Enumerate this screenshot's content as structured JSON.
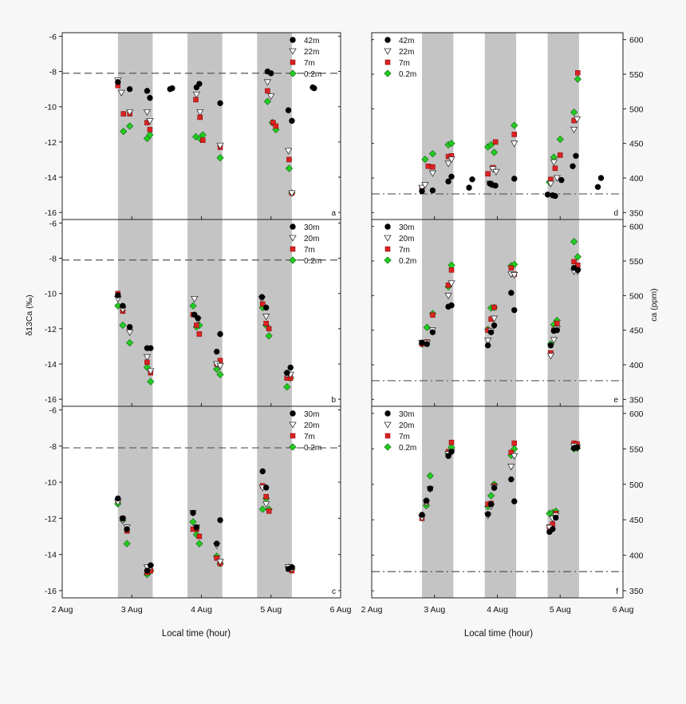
{
  "figure": {
    "x_axis_title": "Local time (hour)",
    "left_y_axis_title": "δ13Ca (‰)",
    "right_y_axis_title": "ca (ppm)",
    "x_tick_labels": [
      "2 Aug",
      "3 Aug",
      "4 Aug",
      "5 Aug",
      "6 Aug"
    ]
  },
  "chart_data": [
    {
      "panel": "a",
      "type": "scatter",
      "yaxis_side": "left",
      "ylim": [
        -16.4,
        -5.8
      ],
      "yticks": [
        -6,
        -8,
        -10,
        -12,
        -14,
        -16
      ],
      "xlim": [
        2,
        6
      ],
      "reference_line": {
        "y": -8.1,
        "style": "dashed"
      },
      "shaded_x": [
        [
          2.8,
          3.3
        ],
        [
          3.8,
          4.3
        ],
        [
          4.8,
          5.3
        ]
      ],
      "series": [
        {
          "name": "42m",
          "marker": "circle",
          "color": "#000000",
          "x": [
            2.8,
            2.97,
            3.22,
            3.26,
            3.55,
            3.58,
            3.93,
            3.97,
            4.27,
            4.95,
            5.0,
            5.25,
            5.3,
            5.6,
            5.62
          ],
          "y": [
            -8.6,
            -9.0,
            -9.1,
            -9.5,
            -9.0,
            -8.95,
            -8.9,
            -8.7,
            -9.8,
            -8.0,
            -8.1,
            -10.2,
            -10.8,
            -8.9,
            -8.95
          ]
        },
        {
          "name": "22m",
          "marker": "triangle-down",
          "color": "#ffffff",
          "x": [
            2.8,
            2.85,
            2.97,
            3.22,
            3.26,
            3.93,
            3.98,
            4.27,
            4.95,
            5.0,
            5.25,
            5.3
          ],
          "y": [
            -8.5,
            -9.2,
            -10.3,
            -10.3,
            -10.8,
            -9.3,
            -10.3,
            -12.2,
            -8.6,
            -9.4,
            -12.5,
            -14.9
          ]
        },
        {
          "name": "7m",
          "marker": "square",
          "color": "#dd2222",
          "x": [
            2.8,
            2.88,
            2.97,
            3.22,
            3.26,
            3.92,
            3.98,
            4.02,
            4.27,
            4.95,
            5.03,
            5.07,
            5.26,
            5.3
          ],
          "y": [
            -8.8,
            -10.4,
            -10.4,
            -10.9,
            -11.3,
            -9.6,
            -10.6,
            -11.9,
            -12.3,
            -9.1,
            -10.9,
            -11.1,
            -13.0,
            -14.9
          ]
        },
        {
          "name": "0.2m",
          "marker": "diamond",
          "color": "#22cc22",
          "x": [
            2.88,
            2.97,
            3.22,
            3.26,
            3.92,
            3.98,
            4.02,
            4.27,
            4.95,
            5.02,
            5.07,
            5.26,
            5.3
          ],
          "y": [
            -11.4,
            -11.1,
            -11.8,
            -11.6,
            -11.7,
            -11.8,
            -11.6,
            -12.9,
            -9.7,
            -10.9,
            -11.3,
            -13.5,
            -14.9
          ]
        }
      ]
    },
    {
      "panel": "b",
      "type": "scatter",
      "yaxis_side": "left",
      "ylim": [
        -16.4,
        -5.8
      ],
      "yticks": [
        -6,
        -8,
        -10,
        -12,
        -14,
        -16
      ],
      "xlim": [
        2,
        6
      ],
      "reference_line": {
        "y": -8.1,
        "style": "dashed"
      },
      "shaded_x": [
        [
          2.8,
          3.3
        ],
        [
          3.8,
          4.3
        ],
        [
          4.8,
          5.3
        ]
      ],
      "series": [
        {
          "name": "30m",
          "marker": "circle",
          "color": "#000000",
          "x": [
            2.8,
            2.87,
            2.97,
            3.22,
            3.27,
            3.9,
            3.95,
            4.22,
            4.27,
            4.87,
            4.93,
            5.23,
            5.28
          ],
          "y": [
            -10.1,
            -10.7,
            -11.9,
            -13.1,
            -13.1,
            -11.2,
            -11.4,
            -13.3,
            -12.3,
            -10.2,
            -10.8,
            -14.5,
            -14.2
          ]
        },
        {
          "name": "20m",
          "marker": "triangle-down",
          "color": "#ffffff",
          "x": [
            2.8,
            2.87,
            2.97,
            3.22,
            3.27,
            3.9,
            3.95,
            4.22,
            4.27,
            4.87,
            4.93,
            5.23,
            5.28
          ],
          "y": [
            -10.3,
            -10.9,
            -12.2,
            -13.6,
            -14.4,
            -10.3,
            -11.5,
            -14.0,
            -14.1,
            -10.3,
            -11.3,
            -14.6,
            -14.6
          ]
        },
        {
          "name": "7m",
          "marker": "square",
          "color": "#dd2222",
          "x": [
            2.8,
            2.87,
            2.97,
            3.22,
            3.27,
            3.88,
            3.93,
            3.97,
            4.22,
            4.27,
            4.88,
            4.93,
            4.97,
            5.23,
            5.28
          ],
          "y": [
            -10.0,
            -11.0,
            -12.0,
            -13.9,
            -14.5,
            -11.2,
            -11.8,
            -12.3,
            -14.0,
            -13.8,
            -10.6,
            -11.7,
            -12.0,
            -14.8,
            -14.8
          ]
        },
        {
          "name": "0.2m",
          "marker": "diamond",
          "color": "#22cc22",
          "x": [
            2.8,
            2.87,
            2.97,
            3.22,
            3.27,
            3.88,
            3.93,
            3.97,
            4.22,
            4.27,
            4.88,
            4.93,
            4.97,
            5.23,
            5.28
          ],
          "y": [
            -10.7,
            -11.8,
            -12.8,
            -14.2,
            -15.0,
            -10.7,
            -11.9,
            -11.8,
            -14.3,
            -14.6,
            -10.8,
            -11.8,
            -12.4,
            -15.3,
            -14.8
          ]
        }
      ]
    },
    {
      "panel": "c",
      "type": "scatter",
      "yaxis_side": "left",
      "ylim": [
        -16.4,
        -5.8
      ],
      "yticks": [
        -6,
        -8,
        -10,
        -12,
        -14,
        -16
      ],
      "xlim": [
        2,
        6
      ],
      "reference_line": {
        "y": -8.1,
        "style": "dashed"
      },
      "shaded_x": [
        [
          2.8,
          3.3
        ],
        [
          3.8,
          4.3
        ],
        [
          4.8,
          5.3
        ]
      ],
      "series": [
        {
          "name": "30m",
          "marker": "circle",
          "color": "#000000",
          "x": [
            2.8,
            2.87,
            2.93,
            3.22,
            3.27,
            3.88,
            3.93,
            4.22,
            4.27,
            4.88,
            4.93,
            5.25,
            5.3
          ],
          "y": [
            -10.9,
            -12.0,
            -12.6,
            -14.9,
            -14.6,
            -11.7,
            -12.5,
            -13.4,
            -12.1,
            -9.4,
            -10.3,
            -14.8,
            -14.7
          ]
        },
        {
          "name": "20m",
          "marker": "triangle-down",
          "color": "#ffffff",
          "x": [
            2.8,
            2.87,
            2.93,
            3.22,
            3.27,
            3.88,
            3.93,
            4.22,
            4.27,
            4.88,
            4.93,
            5.25,
            5.3
          ],
          "y": [
            -11.1,
            -12.1,
            -12.5,
            -14.7,
            -14.7,
            -11.7,
            -12.5,
            -13.5,
            -14.4,
            -10.3,
            -11.2,
            -14.7,
            -14.8
          ]
        },
        {
          "name": "7m",
          "marker": "square",
          "color": "#dd2222",
          "x": [
            2.8,
            2.87,
            2.93,
            3.22,
            3.27,
            3.88,
            3.93,
            3.97,
            4.22,
            4.27,
            4.88,
            4.93,
            4.97,
            5.25,
            5.3
          ],
          "y": [
            -11.0,
            -12.0,
            -12.7,
            -15.0,
            -14.9,
            -12.6,
            -12.6,
            -13.0,
            -14.2,
            -14.5,
            -10.2,
            -10.8,
            -11.6,
            -14.8,
            -14.9
          ]
        },
        {
          "name": "0.2m",
          "marker": "diamond",
          "color": "#22cc22",
          "x": [
            2.8,
            2.87,
            2.93,
            3.22,
            3.27,
            3.88,
            3.93,
            3.97,
            4.22,
            4.27,
            4.88,
            4.93,
            4.97,
            5.25,
            5.3
          ],
          "y": [
            -11.2,
            -12.1,
            -13.4,
            -15.1,
            -14.9,
            -12.2,
            -12.9,
            -13.4,
            -14.1,
            -14.5,
            -11.5,
            -10.9,
            -11.5,
            -14.7,
            -14.8
          ]
        }
      ]
    },
    {
      "panel": "d",
      "type": "scatter",
      "yaxis_side": "right",
      "ylim": [
        340,
        610
      ],
      "yticks": [
        350,
        400,
        450,
        500,
        550,
        600
      ],
      "xlim": [
        2,
        6
      ],
      "reference_line": {
        "y": 377,
        "style": "dash-dot"
      },
      "shaded_x": [
        [
          2.8,
          3.3
        ],
        [
          3.8,
          4.3
        ],
        [
          4.8,
          5.3
        ]
      ],
      "series": [
        {
          "name": "42m",
          "marker": "circle",
          "color": "#000000",
          "x": [
            2.8,
            2.97,
            3.22,
            3.27,
            3.55,
            3.6,
            3.88,
            3.92,
            3.97,
            4.27,
            4.8,
            4.88,
            4.92,
            5.02,
            5.2,
            5.25,
            5.6,
            5.65
          ],
          "y": [
            381,
            382,
            395,
            402,
            386,
            398,
            392,
            390,
            389,
            399,
            376,
            375,
            374,
            397,
            417,
            432,
            387,
            400
          ]
        },
        {
          "name": "22m",
          "marker": "triangle-down",
          "color": "#ffffff",
          "x": [
            2.8,
            2.85,
            2.97,
            3.22,
            3.27,
            3.88,
            3.93,
            3.98,
            4.27,
            4.85,
            4.9,
            4.95,
            5.22,
            5.27
          ],
          "y": [
            386,
            390,
            407,
            421,
            427,
            392,
            413,
            409,
            450,
            392,
            423,
            400,
            470,
            485
          ]
        },
        {
          "name": "7m",
          "marker": "square",
          "color": "#dd2222",
          "x": [
            2.8,
            2.9,
            2.97,
            3.22,
            3.27,
            3.85,
            3.93,
            3.97,
            4.27,
            4.85,
            4.92,
            5.0,
            5.22,
            5.28
          ],
          "y": [
            386,
            417,
            416,
            431,
            432,
            406,
            415,
            452,
            463,
            398,
            414,
            433,
            483,
            552
          ]
        },
        {
          "name": "0.2m",
          "marker": "diamond",
          "color": "#22cc22",
          "x": [
            2.85,
            2.97,
            3.22,
            3.27,
            3.85,
            3.9,
            3.95,
            4.27,
            4.83,
            4.9,
            5.0,
            5.22,
            5.28
          ],
          "y": [
            427,
            435,
            448,
            450,
            445,
            448,
            437,
            476,
            394,
            430,
            456,
            495,
            543
          ]
        }
      ]
    },
    {
      "panel": "e",
      "type": "scatter",
      "yaxis_side": "right",
      "ylim": [
        340,
        610
      ],
      "yticks": [
        350,
        400,
        450,
        500,
        550,
        600
      ],
      "xlim": [
        2,
        6
      ],
      "reference_line": {
        "y": 377,
        "style": "dash-dot"
      },
      "shaded_x": [
        [
          2.8,
          3.3
        ],
        [
          3.8,
          4.3
        ],
        [
          4.8,
          5.3
        ]
      ],
      "series": [
        {
          "name": "30m",
          "marker": "circle",
          "color": "#000000",
          "x": [
            2.8,
            2.88,
            2.97,
            3.22,
            3.27,
            3.85,
            3.9,
            3.95,
            4.22,
            4.27,
            4.85,
            4.9,
            4.95,
            5.22,
            5.28
          ],
          "y": [
            432,
            430,
            447,
            484,
            486,
            428,
            447,
            457,
            504,
            479,
            428,
            449,
            450,
            540,
            537
          ]
        },
        {
          "name": "20m",
          "marker": "triangle-down",
          "color": "#ffffff",
          "x": [
            2.8,
            2.88,
            2.97,
            3.22,
            3.27,
            3.85,
            3.9,
            3.95,
            4.22,
            4.27,
            4.85,
            4.9,
            4.95,
            5.22,
            5.28
          ],
          "y": [
            432,
            432,
            450,
            500,
            518,
            435,
            449,
            467,
            531,
            530,
            413,
            436,
            452,
            535,
            535
          ]
        },
        {
          "name": "7m",
          "marker": "square",
          "color": "#dd2222",
          "x": [
            2.8,
            2.88,
            2.97,
            3.22,
            3.27,
            3.85,
            3.9,
            3.95,
            4.22,
            4.27,
            4.85,
            4.9,
            4.95,
            5.22,
            5.28
          ],
          "y": [
            430,
            433,
            472,
            515,
            537,
            450,
            466,
            483,
            540,
            531,
            417,
            450,
            460,
            549,
            544
          ]
        },
        {
          "name": "0.2m",
          "marker": "diamond",
          "color": "#22cc22",
          "x": [
            2.8,
            2.88,
            2.97,
            3.22,
            3.27,
            3.85,
            3.9,
            3.95,
            4.22,
            4.27,
            4.85,
            4.9,
            4.95,
            5.22,
            5.28
          ],
          "y": [
            430,
            454,
            474,
            513,
            544,
            451,
            482,
            483,
            543,
            545,
            430,
            458,
            464,
            578,
            556
          ]
        }
      ]
    },
    {
      "panel": "f",
      "type": "scatter",
      "yaxis_side": "right",
      "ylim": [
        340,
        610
      ],
      "yticks": [
        350,
        400,
        450,
        500,
        550,
        600
      ],
      "xlim": [
        2,
        6
      ],
      "reference_line": {
        "y": 377,
        "style": "dash-dot"
      },
      "shaded_x": [
        [
          2.8,
          3.3
        ],
        [
          3.8,
          4.3
        ],
        [
          4.8,
          5.3
        ]
      ],
      "series": [
        {
          "name": "30m",
          "marker": "circle",
          "color": "#000000",
          "x": [
            2.8,
            2.87,
            2.93,
            3.22,
            3.27,
            3.85,
            3.9,
            3.95,
            4.22,
            4.27,
            4.83,
            4.88,
            4.93,
            5.22,
            5.27
          ],
          "y": [
            457,
            477,
            494,
            540,
            546,
            458,
            472,
            495,
            507,
            476,
            433,
            437,
            453,
            551,
            552
          ]
        },
        {
          "name": "20m",
          "marker": "triangle-down",
          "color": "#ffffff",
          "x": [
            2.8,
            2.87,
            2.93,
            3.22,
            3.27,
            3.85,
            3.9,
            3.95,
            4.22,
            4.27,
            4.83,
            4.88,
            4.93,
            5.22,
            5.27
          ],
          "y": [
            453,
            474,
            493,
            543,
            546,
            456,
            469,
            496,
            525,
            540,
            439,
            452,
            456,
            554,
            552
          ]
        },
        {
          "name": "7m",
          "marker": "square",
          "color": "#dd2222",
          "x": [
            2.8,
            2.87,
            2.93,
            3.22,
            3.27,
            3.85,
            3.9,
            3.95,
            4.22,
            4.27,
            4.83,
            4.88,
            4.93,
            5.22,
            5.27
          ],
          "y": [
            452,
            475,
            494,
            546,
            559,
            472,
            473,
            498,
            545,
            558,
            440,
            444,
            459,
            558,
            557
          ]
        },
        {
          "name": "0.2m",
          "marker": "diamond",
          "color": "#22cc22",
          "x": [
            2.8,
            2.87,
            2.93,
            3.22,
            3.27,
            3.85,
            3.9,
            3.95,
            4.22,
            4.27,
            4.83,
            4.88,
            4.93,
            5.22,
            5.27
          ],
          "y": [
            456,
            470,
            512,
            543,
            552,
            469,
            484,
            500,
            541,
            550,
            459,
            460,
            462,
            550,
            551
          ]
        }
      ]
    }
  ]
}
